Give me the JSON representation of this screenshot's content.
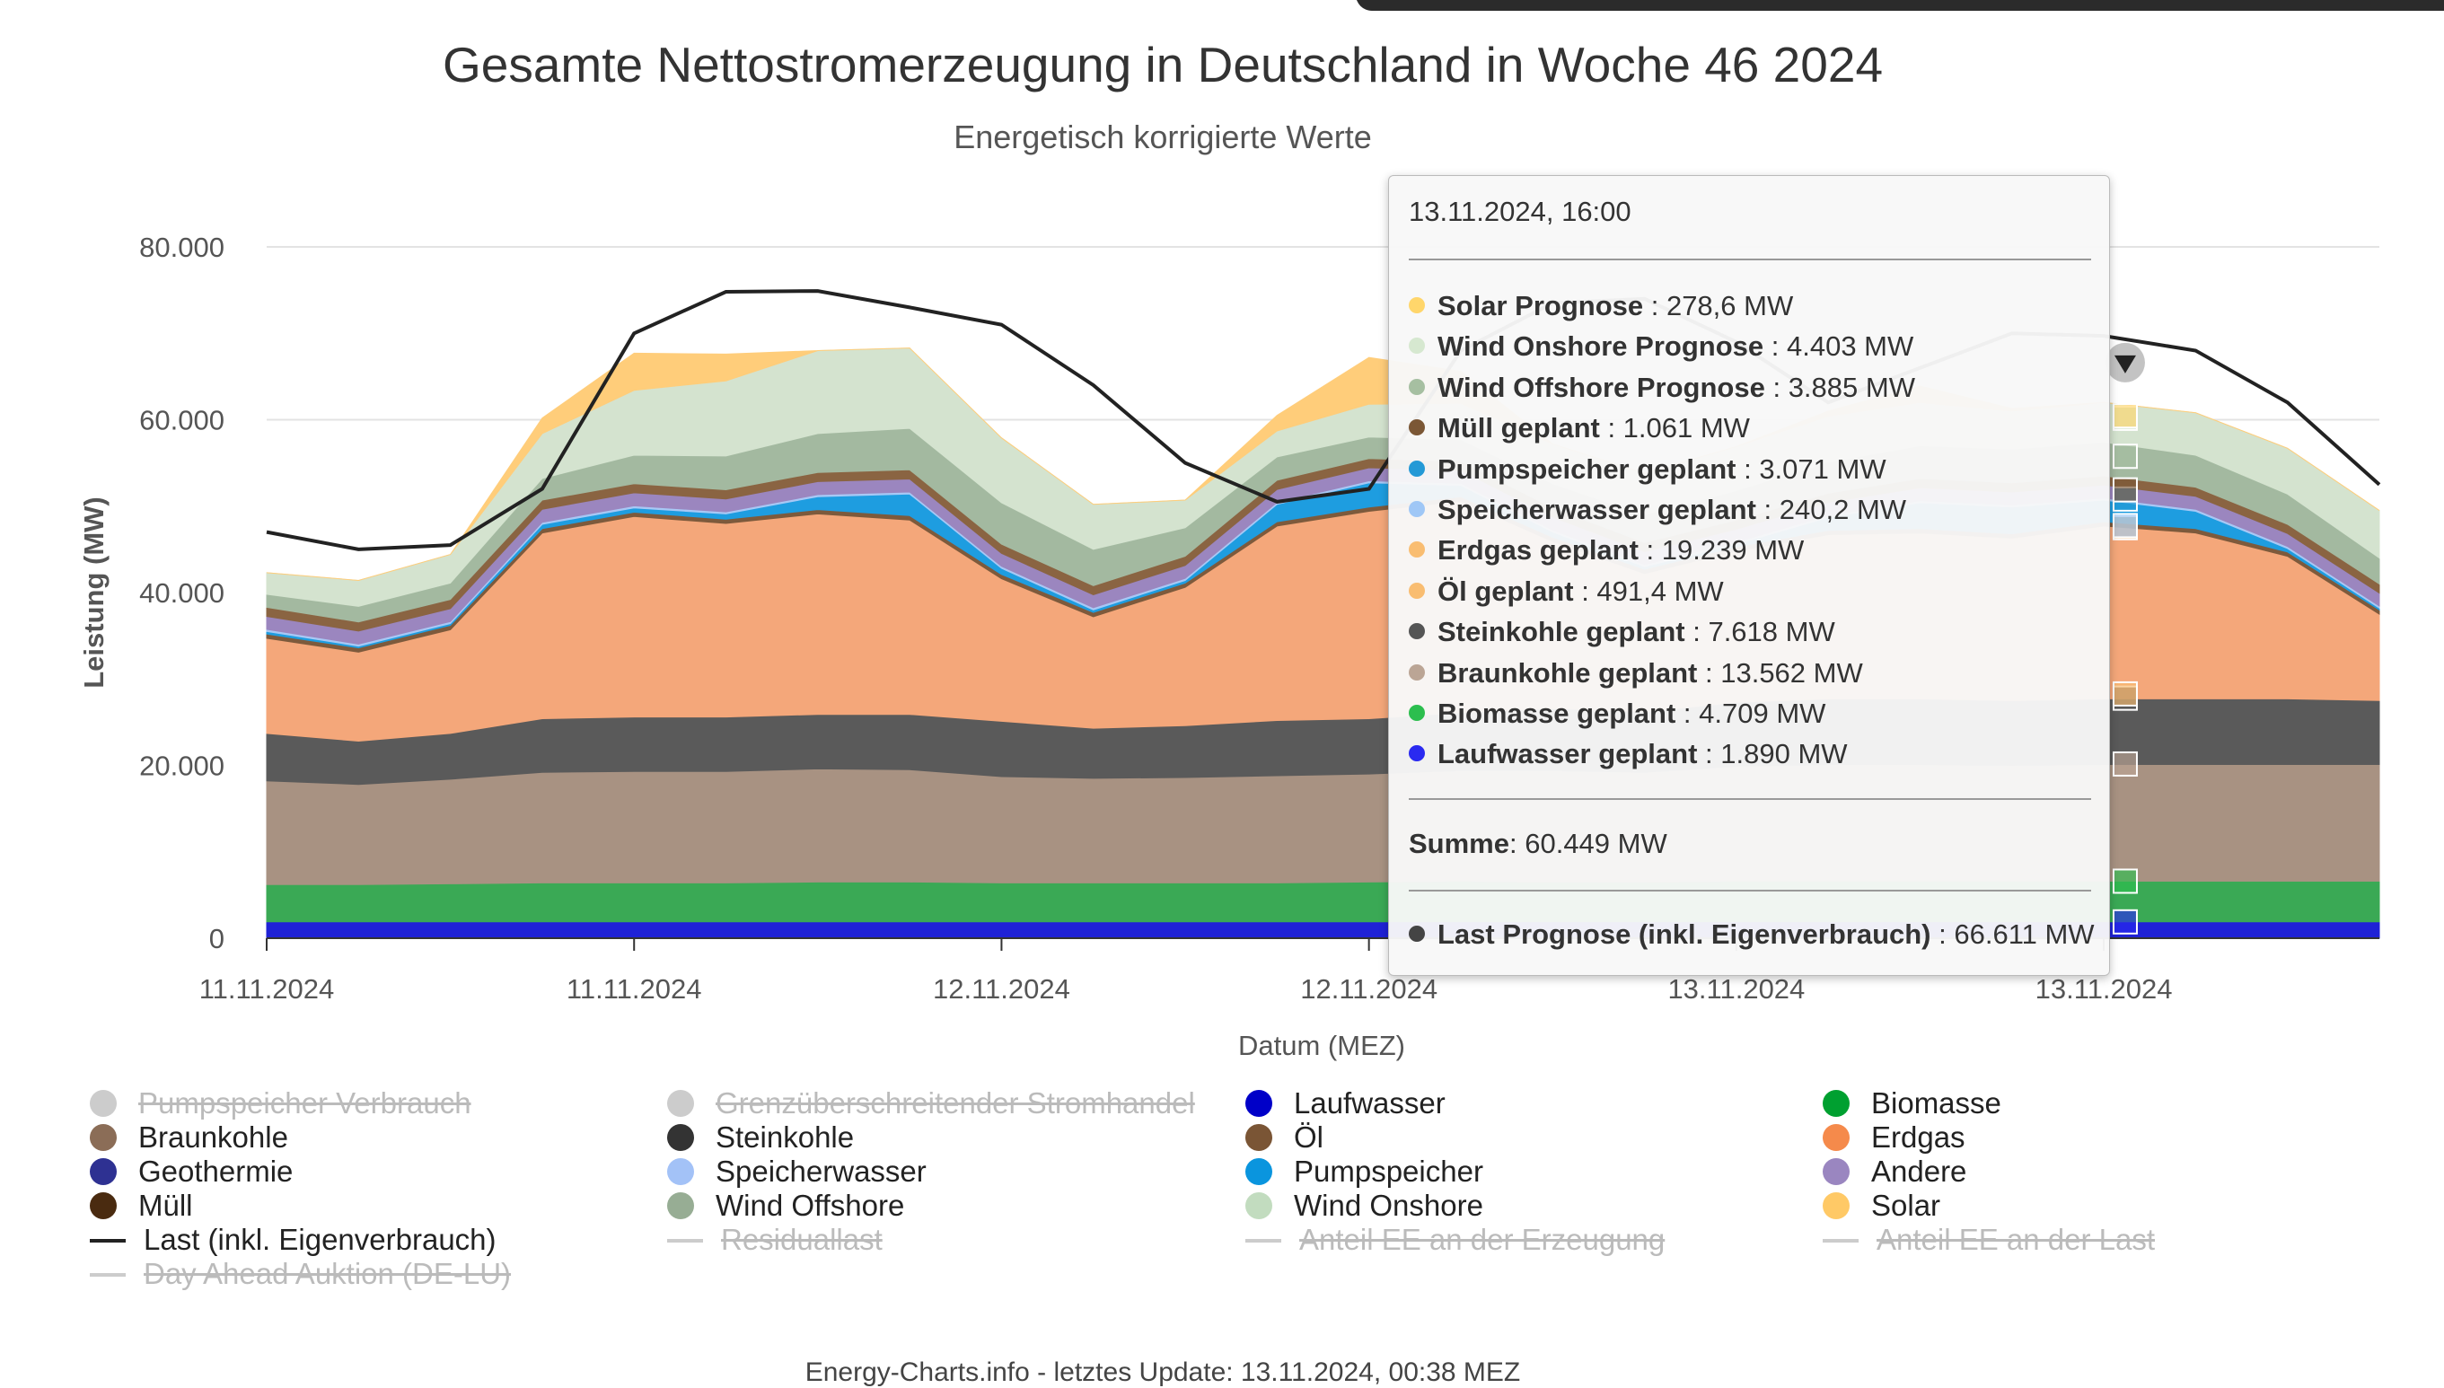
{
  "title": "Gesamte Nettostromerzeugung in Deutschland in Woche 46 2024",
  "subtitle": "Energetisch korrigierte Werte",
  "footer": "Energy-Charts.info - letztes Update: 13.11.2024, 00:38 MEZ",
  "chart_data": {
    "type": "area",
    "stacked": true,
    "ylabel": "Leistung (MW)",
    "xlabel": "Datum (MEZ)",
    "ylim": [
      0,
      80000
    ],
    "yticks": [
      "0",
      "20.000",
      "40.000",
      "60.000",
      "80.000"
    ],
    "ytick_values": [
      0,
      20000,
      40000,
      60000,
      80000
    ],
    "xtick_labels": [
      "11.11.2024",
      "11.11.2024",
      "12.11.2024",
      "12.11.2024",
      "13.11.2024",
      "13.11.2024"
    ],
    "xtick_values": [
      0,
      12,
      24,
      36,
      48,
      60
    ],
    "x_range_hours": [
      0,
      69
    ],
    "x_hours": [
      0,
      3,
      6,
      9,
      12,
      15,
      18,
      21,
      24,
      27,
      30,
      33,
      36,
      39,
      42,
      45,
      48,
      51,
      54,
      57,
      60,
      63,
      66,
      69
    ],
    "series": [
      {
        "name": "Laufwasser",
        "color": "#1f22d6",
        "values": [
          1900,
          1900,
          1900,
          1900,
          1900,
          1900,
          1900,
          1900,
          1900,
          1900,
          1900,
          1900,
          1900,
          1900,
          1900,
          1900,
          1900,
          1900,
          1900,
          1900,
          1900,
          1900,
          1900,
          1900
        ]
      },
      {
        "name": "Biomasse",
        "color": "#3aa955",
        "values": [
          4300,
          4300,
          4400,
          4500,
          4500,
          4500,
          4600,
          4600,
          4500,
          4500,
          4500,
          4500,
          4600,
          4700,
          4600,
          4600,
          4700,
          4700,
          4700,
          4700,
          4700,
          4700,
          4700,
          4700
        ]
      },
      {
        "name": "Braunkohle",
        "color": "#a89282",
        "values": [
          12000,
          11600,
          12100,
          12800,
          12900,
          12900,
          13100,
          13000,
          12300,
          12100,
          12200,
          12400,
          12500,
          12800,
          12900,
          12700,
          13300,
          13500,
          13500,
          13400,
          13500,
          13500,
          13500,
          13500
        ]
      },
      {
        "name": "Steinkohle",
        "color": "#5a5a5a",
        "values": [
          5500,
          5000,
          5300,
          6200,
          6300,
          6300,
          6300,
          6400,
          6400,
          5800,
          6000,
          6400,
          6400,
          6700,
          7200,
          7000,
          7400,
          7600,
          7600,
          7500,
          7600,
          7600,
          7600,
          7400
        ]
      },
      {
        "name": "Erdgas",
        "color": "#f4a77a",
        "values": [
          11000,
          10300,
          12000,
          21500,
          23200,
          22400,
          23200,
          22500,
          16500,
          12900,
          16000,
          22500,
          24000,
          24500,
          19300,
          16000,
          17500,
          19000,
          19200,
          18800,
          20000,
          19200,
          16500,
          10000
        ]
      },
      {
        "name": "Öl",
        "color": "#7d5a3c",
        "values": [
          500,
          500,
          500,
          500,
          500,
          500,
          500,
          500,
          500,
          500,
          500,
          500,
          500,
          500,
          500,
          500,
          500,
          500,
          500,
          500,
          500,
          500,
          500,
          500
        ]
      },
      {
        "name": "Pumpspeicher",
        "color": "#1e9de0",
        "values": [
          300,
          200,
          200,
          500,
          500,
          600,
          1500,
          2500,
          700,
          300,
          300,
          2000,
          2800,
          1300,
          600,
          300,
          300,
          1500,
          3000,
          3100,
          2500,
          2000,
          400,
          200
        ]
      },
      {
        "name": "Speicherwasser",
        "color": "#a8c8f5",
        "values": [
          240,
          240,
          240,
          240,
          240,
          240,
          240,
          240,
          240,
          240,
          240,
          240,
          240,
          240,
          240,
          240,
          240,
          240,
          240,
          240,
          240,
          240,
          240,
          240
        ]
      },
      {
        "name": "Andere",
        "color": "#9b86bf",
        "values": [
          1500,
          1500,
          1500,
          1500,
          1500,
          1500,
          1500,
          1500,
          1500,
          1500,
          1500,
          1500,
          1500,
          1500,
          1500,
          1500,
          1500,
          1500,
          1500,
          1500,
          1500,
          1500,
          1500,
          1500
        ]
      },
      {
        "name": "Müll",
        "color": "#8a6442",
        "values": [
          1060,
          1060,
          1060,
          1060,
          1060,
          1060,
          1060,
          1060,
          1060,
          1060,
          1060,
          1060,
          1060,
          1060,
          1060,
          1060,
          1060,
          1060,
          1060,
          1060,
          1060,
          1060,
          1060,
          1060
        ]
      },
      {
        "name": "Wind Offshore",
        "color": "#a3b9a0",
        "values": [
          1500,
          1800,
          1900,
          2500,
          3300,
          3900,
          4500,
          4800,
          4800,
          4200,
          3300,
          2700,
          2500,
          2500,
          2800,
          3200,
          3400,
          3600,
          3800,
          3900,
          3900,
          3700,
          3500,
          3000
        ]
      },
      {
        "name": "Wind Onshore",
        "color": "#d4e3cf",
        "values": [
          2500,
          3000,
          3300,
          5200,
          7500,
          8700,
          9600,
          9300,
          7500,
          5200,
          3200,
          3000,
          3800,
          4200,
          4600,
          4800,
          5100,
          5300,
          5000,
          4400,
          4600,
          4900,
          5300,
          5500
        ]
      },
      {
        "name": "Solar",
        "color": "#ffcd7a",
        "values": [
          0,
          0,
          0,
          1800,
          4300,
          3100,
          0,
          0,
          0,
          0,
          0,
          1800,
          5400,
          3700,
          0,
          0,
          0,
          600,
          1900,
          300,
          0,
          0,
          0,
          0
        ]
      }
    ],
    "line": {
      "name": "Last (inkl. Eigenverbrauch)",
      "color": "#222222",
      "values": [
        47000,
        45000,
        45500,
        52000,
        70000,
        74800,
        74900,
        73000,
        71000,
        64000,
        55000,
        50500,
        52000,
        68000,
        73500,
        74000,
        69000,
        62000,
        66000,
        70000,
        69700,
        68000,
        62000,
        52500
      ]
    }
  },
  "tooltip": {
    "time": "13.11.2024, 16:00",
    "rows": [
      {
        "label": "Solar Prognose",
        "value": "278,6 MW",
        "color": "#ffd66b"
      },
      {
        "label": "Wind Onshore Prognose",
        "value": "4.403 MW",
        "color": "#d6e8d0"
      },
      {
        "label": "Wind Offshore Prognose",
        "value": "3.885 MW",
        "color": "#a6bfa1"
      },
      {
        "label": "Müll geplant",
        "value": "1.061 MW",
        "color": "#7b5735"
      },
      {
        "label": "Pumpspeicher geplant",
        "value": "3.071 MW",
        "color": "#2399d6"
      },
      {
        "label": "Speicherwasser geplant",
        "value": "240,2 MW",
        "color": "#9fc7f6"
      },
      {
        "label": "Erdgas geplant",
        "value": "19.239 MW",
        "color": "#f9bd71"
      },
      {
        "label": "Öl geplant",
        "value": "491,4 MW",
        "color": "#f9bd71"
      },
      {
        "label": "Steinkohle geplant",
        "value": "7.618 MW",
        "color": "#555555"
      },
      {
        "label": "Braunkohle geplant",
        "value": "13.562 MW",
        "color": "#bba595"
      },
      {
        "label": "Biomasse geplant",
        "value": "4.709 MW",
        "color": "#2cbe4e"
      },
      {
        "label": "Laufwasser geplant",
        "value": "1.890 MW",
        "color": "#2a2af0"
      }
    ],
    "sum_label": "Summe",
    "sum_value": "60.449 MW",
    "last_label": "Last Prognose (inkl. Eigenverbrauch)",
    "last_value": "66.611 MW",
    "last_color": "#444444"
  },
  "legend": [
    {
      "label": "Pumpspeicher Verbrauch",
      "color": "#cccccc",
      "kind": "dot",
      "disabled": true
    },
    {
      "label": "Grenzüberschreitender Stromhandel",
      "color": "#cccccc",
      "kind": "dot",
      "disabled": true
    },
    {
      "label": "Laufwasser",
      "color": "#0000c8",
      "kind": "dot",
      "disabled": false
    },
    {
      "label": "Biomasse",
      "color": "#00a030",
      "kind": "dot",
      "disabled": false
    },
    {
      "label": "Braunkohle",
      "color": "#8b6d57",
      "kind": "dot",
      "disabled": false
    },
    {
      "label": "Steinkohle",
      "color": "#333333",
      "kind": "dot",
      "disabled": false
    },
    {
      "label": "Öl",
      "color": "#7a5535",
      "kind": "dot",
      "disabled": false
    },
    {
      "label": "Erdgas",
      "color": "#f58a4b",
      "kind": "dot",
      "disabled": false
    },
    {
      "label": "Geothermie",
      "color": "#2e3192",
      "kind": "dot",
      "disabled": false
    },
    {
      "label": "Speicherwasser",
      "color": "#a3c2f7",
      "kind": "dot",
      "disabled": false
    },
    {
      "label": "Pumpspeicher",
      "color": "#0a95de",
      "kind": "dot",
      "disabled": false
    },
    {
      "label": "Andere",
      "color": "#9a86c0",
      "kind": "dot",
      "disabled": false
    },
    {
      "label": "Müll",
      "color": "#4a2b10",
      "kind": "dot",
      "disabled": false
    },
    {
      "label": "Wind Offshore",
      "color": "#97ad94",
      "kind": "dot",
      "disabled": false
    },
    {
      "label": "Wind Onshore",
      "color": "#c2dcbf",
      "kind": "dot",
      "disabled": false
    },
    {
      "label": "Solar",
      "color": "#ffc966",
      "kind": "dot",
      "disabled": false
    },
    {
      "label": "Last (inkl. Eigenverbrauch)",
      "color": "#222222",
      "kind": "line",
      "disabled": false
    },
    {
      "label": "Residuallast",
      "color": "#cccccc",
      "kind": "line",
      "disabled": true
    },
    {
      "label": "Anteil EE an der Erzeugung",
      "color": "#cccccc",
      "kind": "line",
      "disabled": true
    },
    {
      "label": "Anteil EE an der Last",
      "color": "#cccccc",
      "kind": "line",
      "disabled": true
    },
    {
      "label": "Day Ahead Auktion (DE-LU)",
      "color": "#cccccc",
      "kind": "line",
      "disabled": true
    }
  ]
}
